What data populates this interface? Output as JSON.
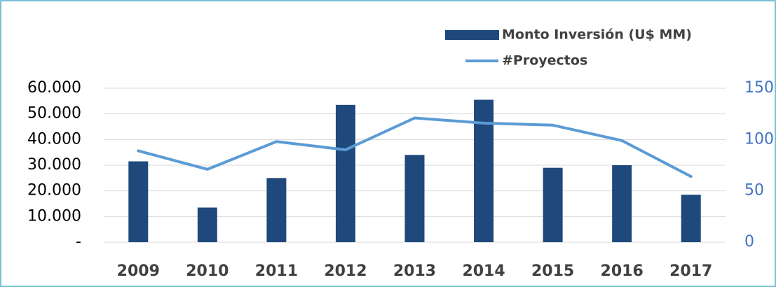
{
  "chart_data": {
    "type": "bar_line",
    "categories": [
      "2009",
      "2010",
      "2011",
      "2012",
      "2013",
      "2014",
      "2015",
      "2016",
      "2017"
    ],
    "series": [
      {
        "name": "Monto Inversión (U$ MM)",
        "color": "#1f497d",
        "type": "bar",
        "axis": "y",
        "values": [
          31500,
          13500,
          25000,
          53500,
          34000,
          55500,
          29000,
          30000,
          18500
        ]
      },
      {
        "name": "#Proyectos",
        "color": "#5b9bd5",
        "type": "line",
        "axis": "y2",
        "values": [
          89,
          71,
          98,
          90,
          121,
          116,
          114,
          99,
          64
        ]
      }
    ],
    "ylim": [
      0,
      60000
    ],
    "yticks": [
      {
        "value": 0,
        "label": "-"
      },
      {
        "value": 10000,
        "label": "10.000"
      },
      {
        "value": 20000,
        "label": "20.000"
      },
      {
        "value": 30000,
        "label": "30.000"
      },
      {
        "value": 40000,
        "label": "40.000"
      },
      {
        "value": 50000,
        "label": "50.000"
      },
      {
        "value": 60000,
        "label": "60.000"
      }
    ],
    "y2lim": [
      0,
      150
    ],
    "y2ticks": [
      0,
      50,
      100,
      150
    ],
    "grid": true,
    "legend": "top"
  }
}
